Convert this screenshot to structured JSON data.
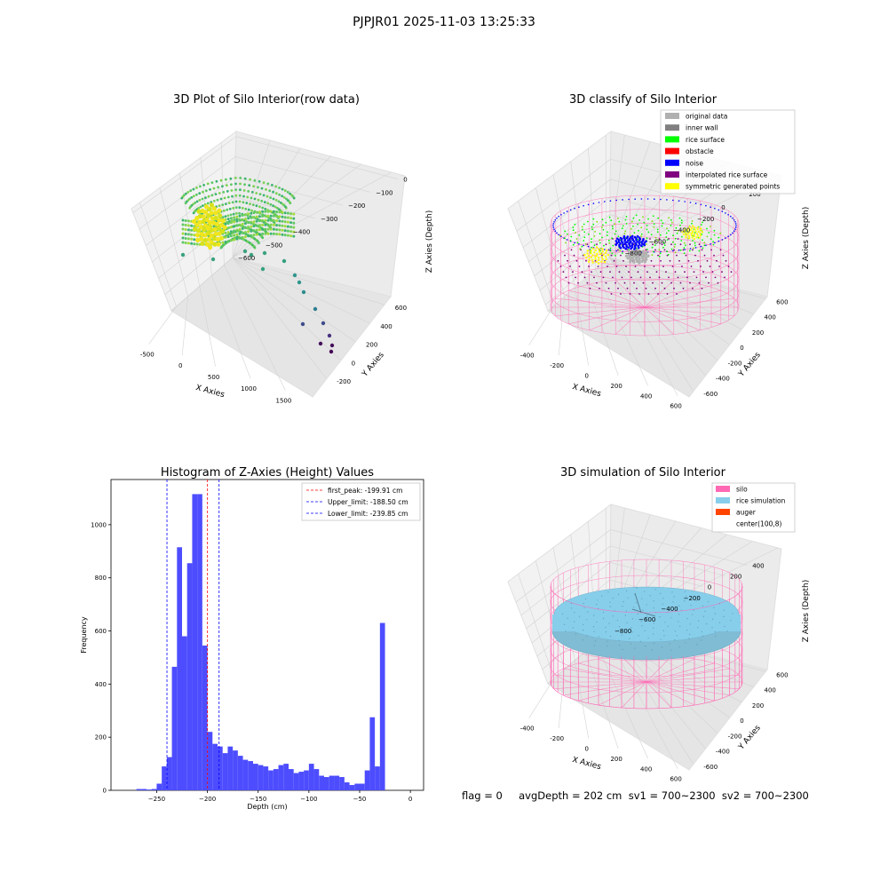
{
  "figure": {
    "title": "PJPJR01 2025-11-03 13:25:33",
    "stats_line": "flag = 0     avgDepth = 202 cm  sv1 = 700~2300  sv2 = 700~2300"
  },
  "colors": {
    "silo": "#ff69b4",
    "rice_simulation": "#87ceeb",
    "auger": "#ff4500",
    "original_data": "#b0b0b0",
    "inner_wall": "#808080",
    "rice_surface": "#00ff00",
    "obstacle": "#ff0000",
    "noise": "#0000ff",
    "interpolated_rice_surface": "#800080",
    "symmetric_generated_points": "#ffff00",
    "histogram_bar": "#4d4dff"
  },
  "chart_data": [
    {
      "type": "scatter",
      "title": "3D Plot of Silo Interior(row data)",
      "xlabel": "X Axies",
      "ylabel": "Y Axies",
      "zlabel": "Z Axies (Depth)",
      "x_ticks": [
        "-500",
        "0",
        "500",
        "1000",
        "1500"
      ],
      "y_ticks": [
        "-200",
        "0",
        "200",
        "400",
        "600"
      ],
      "z_ticks": [
        "0",
        "−100",
        "−200",
        "−300",
        "−400",
        "−500",
        "−600"
      ]
    },
    {
      "type": "scatter",
      "title": "3D classify of Silo Interior",
      "xlabel": "X Axies",
      "ylabel": "Y Axies",
      "zlabel": "Z Axies (Depth)",
      "x_ticks": [
        "-400",
        "-200",
        "0",
        "200",
        "400",
        "600"
      ],
      "y_ticks": [
        "-600",
        "-400",
        "-200",
        "0",
        "200",
        "400",
        "600"
      ],
      "z_ticks": [
        "200",
        "0",
        "−200",
        "−400",
        "−600",
        "−800"
      ],
      "z_top_partial": "0",
      "legend": [
        "original data",
        "inner wall",
        "rice surface",
        "obstacle",
        "noise",
        "interpolated rice surface",
        "symmetric generated points"
      ],
      "legend_position": "upper-right"
    },
    {
      "type": "bar",
      "title": "Histogram of Z-Axies (Height) Values",
      "xlabel": "Depth (cm)",
      "ylabel": "Frequency",
      "xlim": [
        -295,
        13
      ],
      "ylim": [
        0,
        1170
      ],
      "x_ticks": [
        -250,
        -200,
        -150,
        -100,
        -50,
        0
      ],
      "x_tick_labels": [
        "−250",
        "−200",
        "−150",
        "−100",
        "−50",
        "0"
      ],
      "y_ticks": [
        0,
        200,
        400,
        600,
        800,
        1000
      ],
      "y_tick_labels": [
        "0",
        "200",
        "400",
        "600",
        "800",
        "1000"
      ],
      "bin_start": -285,
      "bin_width": 5,
      "values": [
        0,
        0,
        0,
        5,
        5,
        3,
        5,
        25,
        90,
        125,
        465,
        915,
        580,
        855,
        1115,
        1115,
        545,
        220,
        175,
        165,
        140,
        165,
        150,
        130,
        115,
        110,
        100,
        95,
        90,
        75,
        80,
        95,
        100,
        80,
        65,
        70,
        75,
        100,
        80,
        55,
        50,
        55,
        55,
        50,
        30,
        20,
        25,
        25,
        75,
        275,
        90,
        630
      ],
      "lines": [
        {
          "label": "first_peak: -199.91 cm",
          "x": -199.91,
          "color": "#ff0000"
        },
        {
          "label": "Upper_limit: -188.50 cm",
          "x": -188.5,
          "color": "#0000ff"
        },
        {
          "label": "Lower_limit: -239.85 cm",
          "x": -239.85,
          "color": "#0000ff"
        }
      ],
      "legend_position": "upper-right"
    },
    {
      "type": "scatter",
      "title": "3D simulation of Silo Interior",
      "xlabel": "X Axies",
      "ylabel": "Y Axies",
      "zlabel": "Z Axies (Depth)",
      "x_ticks": [
        "-400",
        "-200",
        "0",
        "200",
        "400",
        "600"
      ],
      "y_ticks": [
        "-600",
        "-400",
        "-200",
        "0",
        "200",
        "400",
        "600"
      ],
      "z_ticks": [
        "400",
        "200",
        "0",
        "−200",
        "−400",
        "−600",
        "−800"
      ],
      "legend": [
        "silo",
        "rice simulation",
        "auger",
        "center(100,8)"
      ],
      "legend_position": "upper-right"
    }
  ]
}
